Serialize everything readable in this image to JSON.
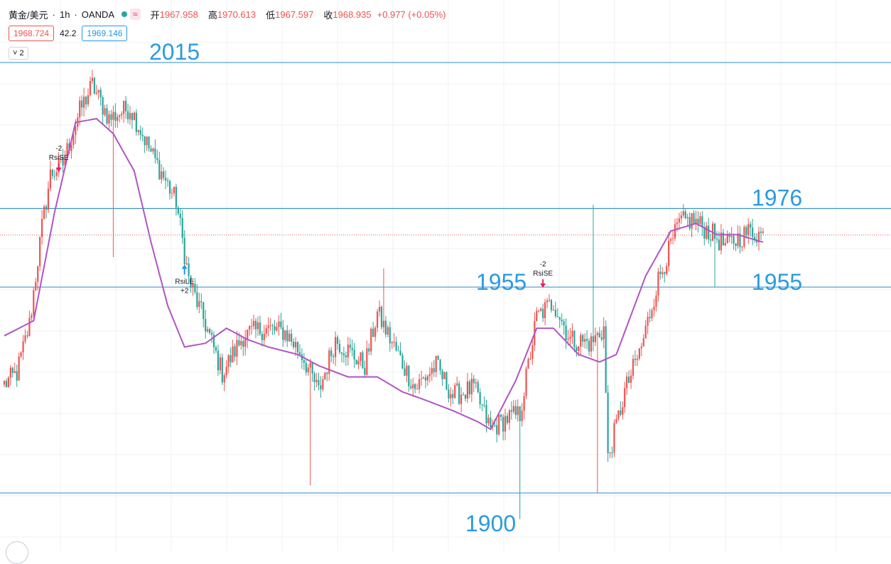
{
  "header": {
    "symbol": "黄金/美元",
    "sep1": "·",
    "interval": "1h",
    "sep2": "·",
    "source": "OANDA",
    "status_icon": "green-dot-icon",
    "wave_glyph": "≈",
    "open_label": "开",
    "open_value": "1967.958",
    "high_label": "高",
    "high_value": "1970.613",
    "low_label": "低",
    "low_value": "1967.597",
    "close_label": "收",
    "close_value": "1968.935",
    "change": "+0.977 (+0.05%)"
  },
  "price_boxes": {
    "left": "1968.724",
    "middle": "42.2",
    "right": "1969.146"
  },
  "collapse_button": {
    "glyph": "˅",
    "count": "2"
  },
  "colors": {
    "up": "#ef5350",
    "down": "#26a69a",
    "ma": "#b154c4",
    "level_line": "#2b8cc4",
    "level_text": "#2b9be0",
    "grid": "#eef0f4",
    "signal_sell": "#e91e63",
    "signal_buy": "#2196f3",
    "dotted_price": "#ef5350",
    "wave_bg": "#fce4ec",
    "wave_fg": "#e91e63",
    "status_dot": "#26a69a"
  },
  "chart_data": {
    "type": "candlestick",
    "instrument": "黄金/美元",
    "timeframe": "1h",
    "ylim": [
      1893,
      2017
    ],
    "current_price": 1968.9,
    "levels": [
      {
        "value": 2015,
        "label": "2015"
      },
      {
        "value": 1976,
        "label": "1976"
      },
      {
        "value": 1955,
        "label": "1955"
      },
      {
        "value": 1955,
        "label": "1955"
      },
      {
        "value": 1900,
        "label": "1900"
      }
    ],
    "anchors": [
      [
        0,
        1929
      ],
      [
        6,
        1932
      ],
      [
        12,
        1945
      ],
      [
        18,
        1971
      ],
      [
        22,
        1985
      ],
      [
        28,
        1988
      ],
      [
        36,
        2002
      ],
      [
        42,
        2009
      ],
      [
        50,
        2000
      ],
      [
        60,
        2003
      ],
      [
        70,
        1991
      ],
      [
        82,
        1978
      ],
      [
        88,
        1957
      ],
      [
        96,
        1945
      ],
      [
        104,
        1932
      ],
      [
        114,
        1942
      ],
      [
        124,
        1944
      ],
      [
        134,
        1943
      ],
      [
        142,
        1937
      ],
      [
        150,
        1927
      ],
      [
        158,
        1941
      ],
      [
        166,
        1937
      ],
      [
        172,
        1934
      ],
      [
        178,
        1948
      ],
      [
        186,
        1939
      ],
      [
        196,
        1928
      ],
      [
        206,
        1934
      ],
      [
        214,
        1926
      ],
      [
        224,
        1928
      ],
      [
        232,
        1917
      ],
      [
        240,
        1920
      ],
      [
        246,
        1921
      ],
      [
        254,
        1947
      ],
      [
        262,
        1951
      ],
      [
        270,
        1941
      ],
      [
        280,
        1940
      ],
      [
        286,
        1944
      ],
      [
        288,
        1909
      ],
      [
        296,
        1927
      ],
      [
        304,
        1939
      ],
      [
        312,
        1957
      ],
      [
        322,
        1972
      ],
      [
        328,
        1973
      ],
      [
        336,
        1970
      ],
      [
        344,
        1966
      ],
      [
        356,
        1970
      ],
      [
        362,
        1968.9
      ]
    ],
    "ma_anchors": [
      [
        0,
        1942
      ],
      [
        14,
        1946
      ],
      [
        24,
        1975
      ],
      [
        34,
        1999
      ],
      [
        44,
        2000
      ],
      [
        52,
        1996
      ],
      [
        62,
        1986
      ],
      [
        70,
        1967
      ],
      [
        78,
        1950
      ],
      [
        86,
        1939
      ],
      [
        96,
        1940
      ],
      [
        106,
        1944
      ],
      [
        116,
        1941
      ],
      [
        126,
        1939
      ],
      [
        140,
        1937
      ],
      [
        150,
        1934
      ],
      [
        164,
        1931
      ],
      [
        178,
        1931
      ],
      [
        190,
        1927
      ],
      [
        200,
        1925
      ],
      [
        214,
        1922
      ],
      [
        226,
        1919
      ],
      [
        232,
        1917
      ],
      [
        244,
        1930
      ],
      [
        254,
        1944
      ],
      [
        262,
        1944
      ],
      [
        274,
        1937
      ],
      [
        284,
        1935
      ],
      [
        292,
        1937
      ],
      [
        306,
        1958
      ],
      [
        318,
        1970
      ],
      [
        330,
        1972
      ],
      [
        340,
        1969
      ],
      [
        350,
        1969
      ],
      [
        362,
        1967
      ]
    ],
    "signals": [
      {
        "type": "sell",
        "index": 26,
        "price": 1986,
        "label": "RsiSE",
        "value": "-2"
      },
      {
        "type": "buy",
        "index": 86,
        "price": 1961,
        "label": "RsiLE",
        "value": "+2"
      },
      {
        "type": "sell",
        "index": 257,
        "price": 1955,
        "label": "RsiSE",
        "value": "-2"
      }
    ],
    "count": 363
  }
}
